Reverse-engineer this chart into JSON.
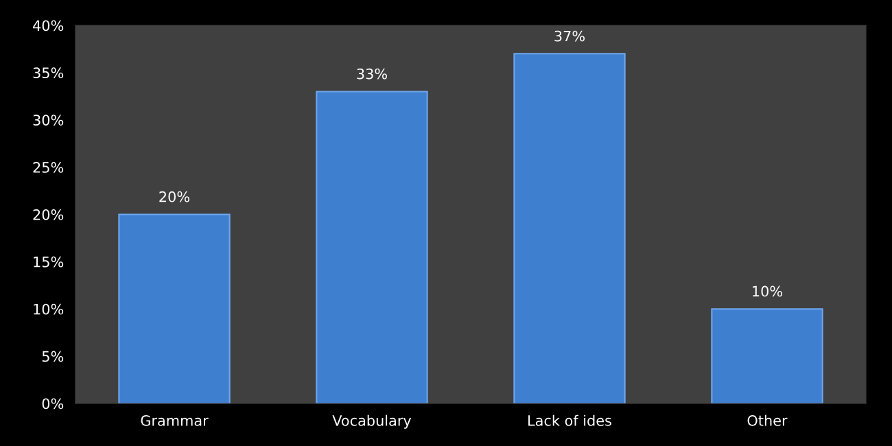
{
  "chart_data": {
    "type": "bar",
    "categories": [
      "Grammar",
      "Vocabulary",
      "Lack of ides",
      "Other"
    ],
    "values": [
      20,
      33,
      37,
      10
    ],
    "value_labels": [
      "20%",
      "33%",
      "37%",
      "10%"
    ],
    "color": "#3f7fd0",
    "ylim": [
      0,
      40
    ],
    "yticks": [
      {
        "value": 0,
        "label": "0%"
      },
      {
        "value": 5,
        "label": "5%"
      },
      {
        "value": 10,
        "label": "10%"
      },
      {
        "value": 15,
        "label": "15%"
      },
      {
        "value": 20,
        "label": "20%"
      },
      {
        "value": 25,
        "label": "25%"
      },
      {
        "value": 30,
        "label": "30%"
      },
      {
        "value": 35,
        "label": "35%"
      },
      {
        "value": 40,
        "label": "40%"
      }
    ],
    "grid": false,
    "legend": false
  }
}
